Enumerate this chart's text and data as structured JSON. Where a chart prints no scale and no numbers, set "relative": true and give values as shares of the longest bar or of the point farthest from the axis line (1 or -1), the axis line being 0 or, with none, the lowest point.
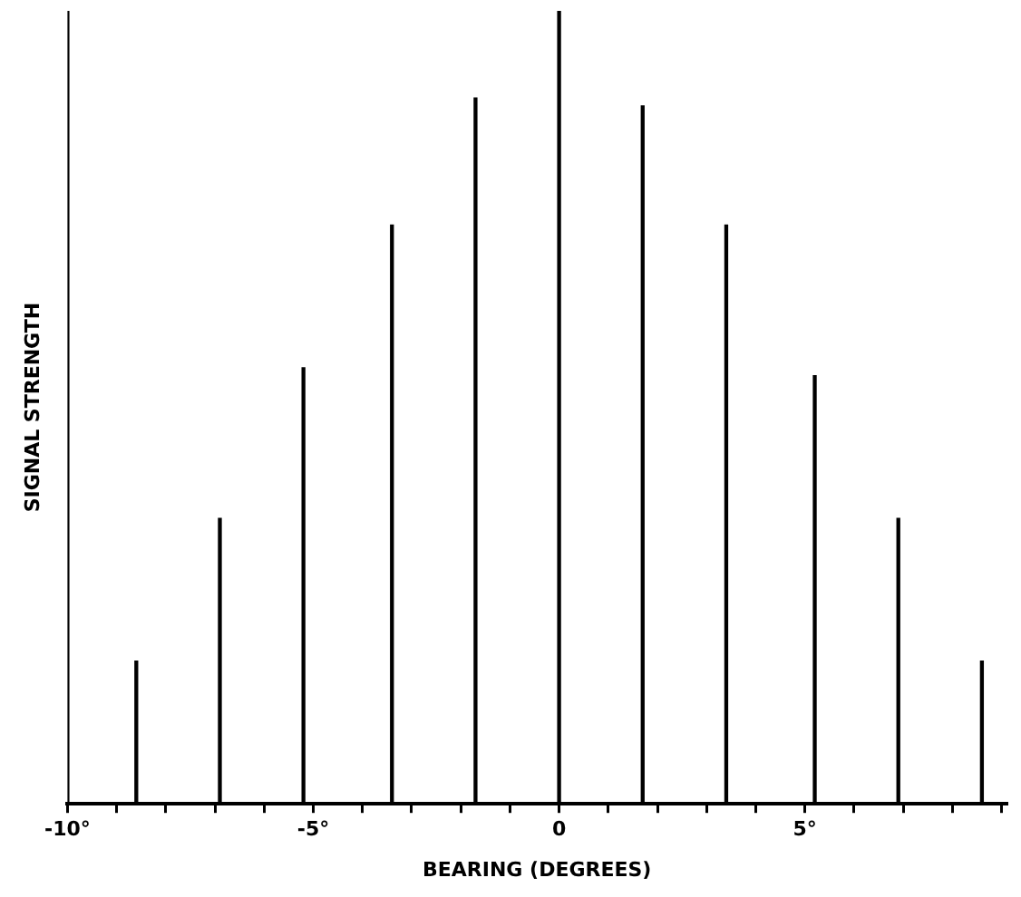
{
  "chart_data": {
    "type": "bar",
    "relative": true,
    "xlabel": "BEARING (DEGREES)",
    "ylabel": "SIGNAL STRENGTH",
    "x": [
      -10,
      -8.6,
      -6.9,
      -5.2,
      -3.4,
      -1.7,
      0,
      1.7,
      3.4,
      5.2,
      6.9,
      8.6
    ],
    "values": [
      1.0,
      0.18,
      0.36,
      0.55,
      0.73,
      0.89,
      1.0,
      0.88,
      0.73,
      0.54,
      0.36,
      0.18
    ],
    "color": "#000000",
    "xlim": [
      -10,
      9.1
    ],
    "xticks": [
      {
        "value": -10,
        "label": "-10°"
      },
      {
        "value": -9,
        "label": null
      },
      {
        "value": -8,
        "label": null
      },
      {
        "value": -7,
        "label": null
      },
      {
        "value": -6,
        "label": null
      },
      {
        "value": -5,
        "label": "-5°"
      },
      {
        "value": -4,
        "label": null
      },
      {
        "value": -3,
        "label": null
      },
      {
        "value": -2,
        "label": null
      },
      {
        "value": -1,
        "label": null
      },
      0,
      {
        "value": 1,
        "label": null
      },
      {
        "value": 2,
        "label": null
      },
      {
        "value": 3,
        "label": null
      },
      {
        "value": 4,
        "label": null
      },
      {
        "value": 5,
        "label": "5°"
      },
      {
        "value": 6,
        "label": null
      },
      {
        "value": 7,
        "label": null
      },
      {
        "value": 8,
        "label": null
      },
      {
        "value": 9,
        "label": null
      }
    ],
    "grid": false,
    "legend": false
  }
}
